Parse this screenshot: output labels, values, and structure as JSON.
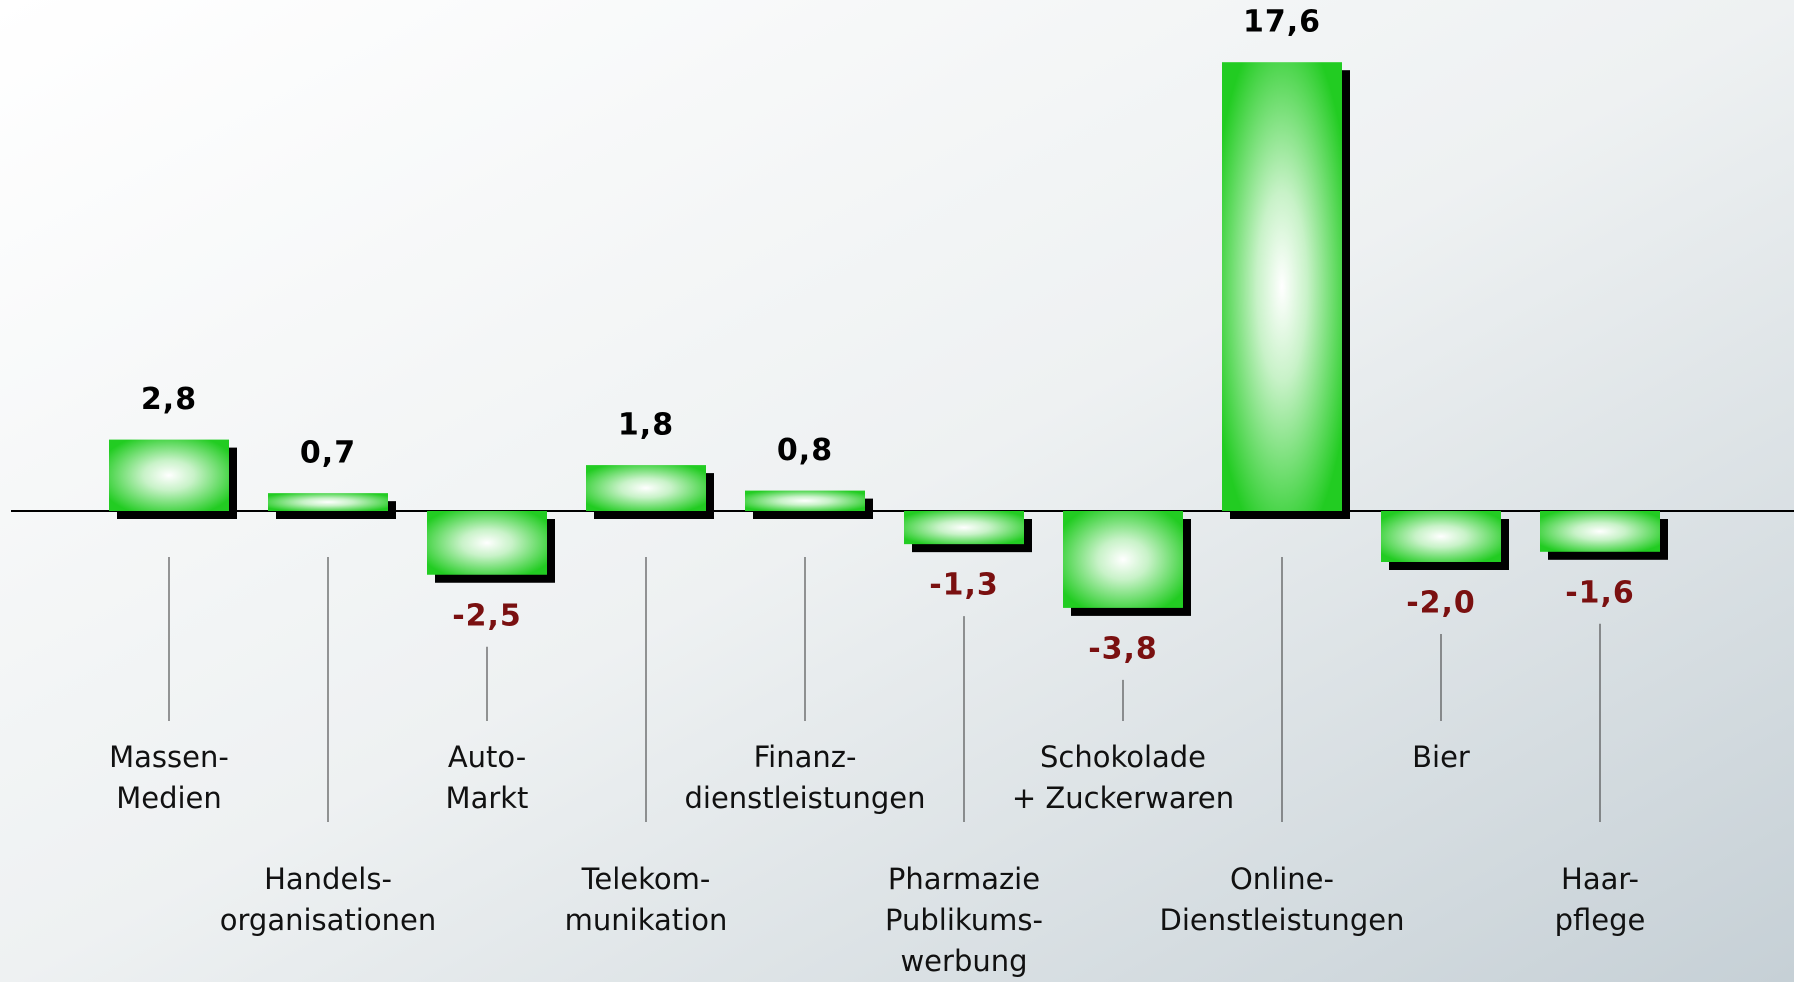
{
  "chart_data": {
    "type": "bar",
    "categories": [
      [
        "Massen-",
        "Medien"
      ],
      [
        "Handels-",
        "organisationen"
      ],
      [
        "Auto-",
        "Markt"
      ],
      [
        "Telekom-",
        "munikation"
      ],
      [
        "Finanz-",
        "dienstleistungen"
      ],
      [
        "Pharmazie",
        "Publikums-",
        "werbung"
      ],
      [
        "Schokolade",
        "+ Zuckerwaren"
      ],
      [
        "Online-",
        "Dienstleistungen"
      ],
      [
        "Bier"
      ],
      [
        "Haar-",
        "pflege"
      ]
    ],
    "values": [
      2.8,
      0.7,
      -2.5,
      1.8,
      0.8,
      -1.3,
      -3.8,
      17.6,
      -2.0,
      -1.6
    ],
    "value_labels": [
      "2,8",
      "0,7",
      "-2,5",
      "1,8",
      "0,8",
      "-1,3",
      "-3,8",
      "17,6",
      "-2,0",
      "-1,6"
    ],
    "color": "#22cc22",
    "label_color": "#000000",
    "negative_label_color": "#7a1010",
    "ylim": [
      -18,
      20
    ]
  }
}
